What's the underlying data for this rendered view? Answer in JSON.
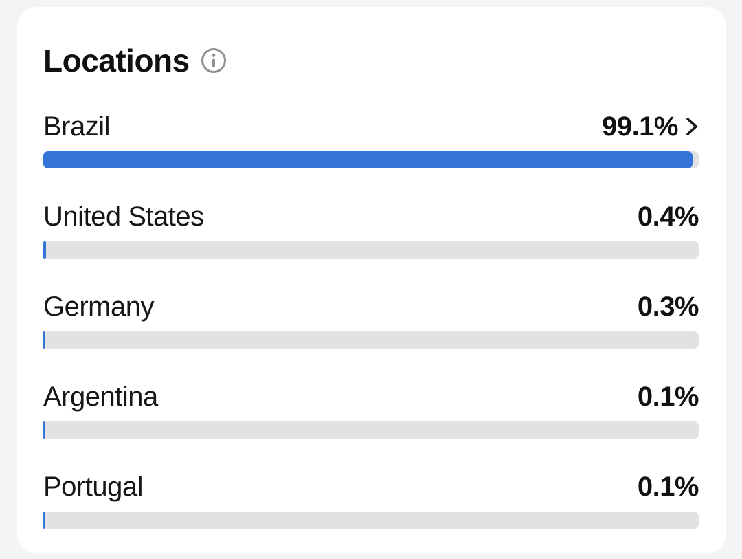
{
  "card": {
    "title": "Locations",
    "locations": [
      {
        "name": "Brazil",
        "percent": "99.1%",
        "value": 99.1,
        "has_chevron": true
      },
      {
        "name": "United States",
        "percent": "0.4%",
        "value": 0.4,
        "has_chevron": false
      },
      {
        "name": "Germany",
        "percent": "0.3%",
        "value": 0.3,
        "has_chevron": false
      },
      {
        "name": "Argentina",
        "percent": "0.1%",
        "value": 0.1,
        "has_chevron": false
      },
      {
        "name": "Portugal",
        "percent": "0.1%",
        "value": 0.1,
        "has_chevron": false
      }
    ]
  },
  "colors": {
    "bar_fill": "#3474d8",
    "bar_track": "#e2e2e2",
    "page_background": "#f4f4f4",
    "card_background": "#ffffff",
    "text": "#161616",
    "info_icon": "#8f8f8f",
    "chevron": "#1a1a1a"
  },
  "icons": {
    "info": "info-icon",
    "chevron": "chevron-right-icon"
  },
  "chart_data": {
    "type": "bar",
    "orientation": "horizontal",
    "title": "Locations",
    "categories": [
      "Brazil",
      "United States",
      "Germany",
      "Argentina",
      "Portugal"
    ],
    "values": [
      99.1,
      0.4,
      0.3,
      0.1,
      0.1
    ],
    "unit": "%",
    "xlim": [
      0,
      100
    ],
    "legend": false,
    "grid": false
  }
}
